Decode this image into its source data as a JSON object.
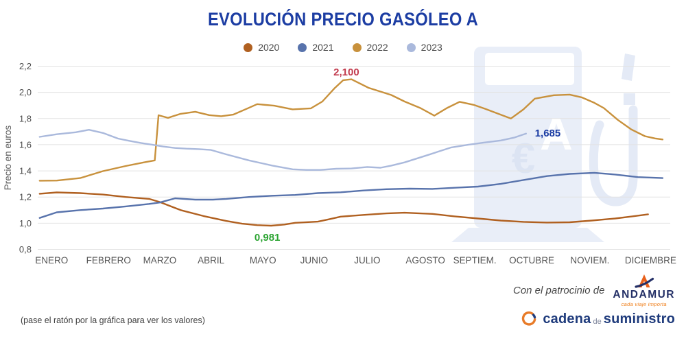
{
  "title": "EVOLUCIÓN PRECIO GASÓLEO A",
  "chart_data": {
    "type": "line",
    "title": "EVOLUCIÓN PRECIO GASÓLEO A",
    "xlabel": "",
    "ylabel": "Precio en euros",
    "grid": "horizontal",
    "legend_position": "top-center",
    "y_axis": {
      "min": 0.8,
      "max": 2.2,
      "step": 0.2,
      "tick_labels": [
        "0,8",
        "1,0",
        "1,2",
        "1,4",
        "1,6",
        "1,8",
        "2,0",
        "2,2"
      ]
    },
    "x_axis": {
      "unit": "fraction of year, 0 = inicio enero, 1 = fin diciembre",
      "months": [
        {
          "label": "ENERO",
          "pos": 0.022
        },
        {
          "label": "FEBRERO",
          "pos": 0.112
        },
        {
          "label": "MARZO",
          "pos": 0.193
        },
        {
          "label": "ABRIL",
          "pos": 0.274
        },
        {
          "label": "MAYO",
          "pos": 0.356
        },
        {
          "label": "JUNIO",
          "pos": 0.437
        },
        {
          "label": "JULIO",
          "pos": 0.521
        },
        {
          "label": "AGOSTO",
          "pos": 0.613
        },
        {
          "label": "SEPTIEM.",
          "pos": 0.691
        },
        {
          "label": "OCTUBRE",
          "pos": 0.781
        },
        {
          "label": "NOVIEM.",
          "pos": 0.873
        },
        {
          "label": "DICIEMBRE",
          "pos": 0.969
        }
      ]
    },
    "series": [
      {
        "name": "2020",
        "color": "#b06020",
        "points": [
          [
            0.003,
            1.225
          ],
          [
            0.03,
            1.235
          ],
          [
            0.067,
            1.23
          ],
          [
            0.103,
            1.219
          ],
          [
            0.139,
            1.2
          ],
          [
            0.176,
            1.186
          ],
          [
            0.193,
            1.162
          ],
          [
            0.226,
            1.1
          ],
          [
            0.262,
            1.055
          ],
          [
            0.298,
            1.017
          ],
          [
            0.323,
            0.996
          ],
          [
            0.347,
            0.985
          ],
          [
            0.369,
            0.981
          ],
          [
            0.39,
            0.99
          ],
          [
            0.407,
            1.003
          ],
          [
            0.443,
            1.012
          ],
          [
            0.461,
            1.03
          ],
          [
            0.479,
            1.05
          ],
          [
            0.515,
            1.063
          ],
          [
            0.551,
            1.075
          ],
          [
            0.58,
            1.08
          ],
          [
            0.624,
            1.071
          ],
          [
            0.659,
            1.052
          ],
          [
            0.696,
            1.036
          ],
          [
            0.732,
            1.02
          ],
          [
            0.768,
            1.01
          ],
          [
            0.805,
            1.005
          ],
          [
            0.841,
            1.007
          ],
          [
            0.876,
            1.02
          ],
          [
            0.913,
            1.036
          ],
          [
            0.94,
            1.052
          ],
          [
            0.965,
            1.068
          ]
        ]
      },
      {
        "name": "2021",
        "color": "#5873ac",
        "points": [
          [
            0.003,
            1.04
          ],
          [
            0.03,
            1.083
          ],
          [
            0.067,
            1.1
          ],
          [
            0.103,
            1.112
          ],
          [
            0.139,
            1.128
          ],
          [
            0.176,
            1.147
          ],
          [
            0.193,
            1.158
          ],
          [
            0.217,
            1.19
          ],
          [
            0.249,
            1.18
          ],
          [
            0.277,
            1.18
          ],
          [
            0.298,
            1.186
          ],
          [
            0.334,
            1.2
          ],
          [
            0.371,
            1.21
          ],
          [
            0.407,
            1.216
          ],
          [
            0.443,
            1.23
          ],
          [
            0.479,
            1.236
          ],
          [
            0.515,
            1.25
          ],
          [
            0.551,
            1.26
          ],
          [
            0.588,
            1.264
          ],
          [
            0.624,
            1.262
          ],
          [
            0.659,
            1.271
          ],
          [
            0.696,
            1.28
          ],
          [
            0.732,
            1.3
          ],
          [
            0.768,
            1.33
          ],
          [
            0.805,
            1.36
          ],
          [
            0.841,
            1.377
          ],
          [
            0.88,
            1.385
          ],
          [
            0.913,
            1.372
          ],
          [
            0.949,
            1.352
          ],
          [
            0.988,
            1.345
          ]
        ]
      },
      {
        "name": "2022",
        "color": "#c8913c",
        "points": [
          [
            0.003,
            1.325
          ],
          [
            0.03,
            1.326
          ],
          [
            0.067,
            1.345
          ],
          [
            0.103,
            1.398
          ],
          [
            0.139,
            1.437
          ],
          [
            0.168,
            1.465
          ],
          [
            0.185,
            1.48
          ],
          [
            0.191,
            1.825
          ],
          [
            0.206,
            1.805
          ],
          [
            0.225,
            1.835
          ],
          [
            0.249,
            1.852
          ],
          [
            0.271,
            1.826
          ],
          [
            0.29,
            1.818
          ],
          [
            0.309,
            1.83
          ],
          [
            0.331,
            1.876
          ],
          [
            0.347,
            1.91
          ],
          [
            0.374,
            1.898
          ],
          [
            0.403,
            1.87
          ],
          [
            0.432,
            1.878
          ],
          [
            0.45,
            1.93
          ],
          [
            0.469,
            2.03
          ],
          [
            0.483,
            2.093
          ],
          [
            0.496,
            2.1
          ],
          [
            0.523,
            2.035
          ],
          [
            0.559,
            1.98
          ],
          [
            0.58,
            1.93
          ],
          [
            0.605,
            1.88
          ],
          [
            0.627,
            1.822
          ],
          [
            0.647,
            1.88
          ],
          [
            0.667,
            1.928
          ],
          [
            0.689,
            1.905
          ],
          [
            0.707,
            1.875
          ],
          [
            0.729,
            1.835
          ],
          [
            0.748,
            1.8
          ],
          [
            0.768,
            1.87
          ],
          [
            0.786,
            1.952
          ],
          [
            0.816,
            1.978
          ],
          [
            0.841,
            1.983
          ],
          [
            0.86,
            1.962
          ],
          [
            0.88,
            1.92
          ],
          [
            0.895,
            1.88
          ],
          [
            0.917,
            1.79
          ],
          [
            0.938,
            1.718
          ],
          [
            0.96,
            1.665
          ],
          [
            0.976,
            1.648
          ],
          [
            0.988,
            1.64
          ]
        ]
      },
      {
        "name": "2023",
        "color": "#aab9dc",
        "points": [
          [
            0.003,
            1.66
          ],
          [
            0.03,
            1.68
          ],
          [
            0.06,
            1.695
          ],
          [
            0.081,
            1.714
          ],
          [
            0.103,
            1.69
          ],
          [
            0.127,
            1.647
          ],
          [
            0.144,
            1.63
          ],
          [
            0.163,
            1.613
          ],
          [
            0.181,
            1.6
          ],
          [
            0.198,
            1.586
          ],
          [
            0.217,
            1.575
          ],
          [
            0.235,
            1.57
          ],
          [
            0.255,
            1.566
          ],
          [
            0.274,
            1.56
          ],
          [
            0.298,
            1.526
          ],
          [
            0.334,
            1.48
          ],
          [
            0.371,
            1.44
          ],
          [
            0.403,
            1.412
          ],
          [
            0.425,
            1.407
          ],
          [
            0.447,
            1.407
          ],
          [
            0.472,
            1.416
          ],
          [
            0.496,
            1.418
          ],
          [
            0.521,
            1.43
          ],
          [
            0.542,
            1.424
          ],
          [
            0.559,
            1.44
          ],
          [
            0.58,
            1.465
          ],
          [
            0.616,
            1.52
          ],
          [
            0.653,
            1.578
          ],
          [
            0.681,
            1.6
          ],
          [
            0.707,
            1.617
          ],
          [
            0.732,
            1.632
          ],
          [
            0.754,
            1.655
          ],
          [
            0.772,
            1.685
          ]
        ]
      }
    ],
    "annotations": [
      {
        "text": "2,100",
        "value": 2.1,
        "series": "2022",
        "color": "#c23b4e",
        "x": 0.488,
        "label_v": 2.13,
        "anchor": "middle",
        "weight": "600"
      },
      {
        "text": "0,981",
        "value": 0.981,
        "series": "2020",
        "color": "#2ea534",
        "x": 0.363,
        "label_v": 0.866,
        "anchor": "middle",
        "weight": "600"
      },
      {
        "text": "1,685",
        "value": 1.685,
        "series": "2023",
        "color": "#1c3da3",
        "x": 0.786,
        "label_v": 1.663,
        "anchor": "start",
        "weight": "700"
      }
    ]
  },
  "colors": {
    "title": "#1c3da3",
    "grid": "#e2e2e2",
    "axis_text": "#4c4c4c",
    "watermark_body": "#e9eef8",
    "watermark_accent": "#dce4f3",
    "annotation_red": "#c23b4e",
    "annotation_green": "#2ea534",
    "annotation_navy": "#1c3da3",
    "andamur_navy": "#232f66",
    "andamur_orange": "#e8611c",
    "cadena_navy": "#1f3b7c",
    "cadena_orange": "#e87b28"
  },
  "watermark": {
    "euro_symbol": "€",
    "letter": "A"
  },
  "footer": {
    "note": "(pase el ratón por la gráfica para ver los valores)",
    "sponsor_prefix": "Con el patrocinio de",
    "sponsor_name": "ANDAMUR",
    "sponsor_tagline": "cada viaje importa",
    "publisher": {
      "word1": "cadena",
      "word2": "de",
      "word3": "suministro"
    }
  }
}
